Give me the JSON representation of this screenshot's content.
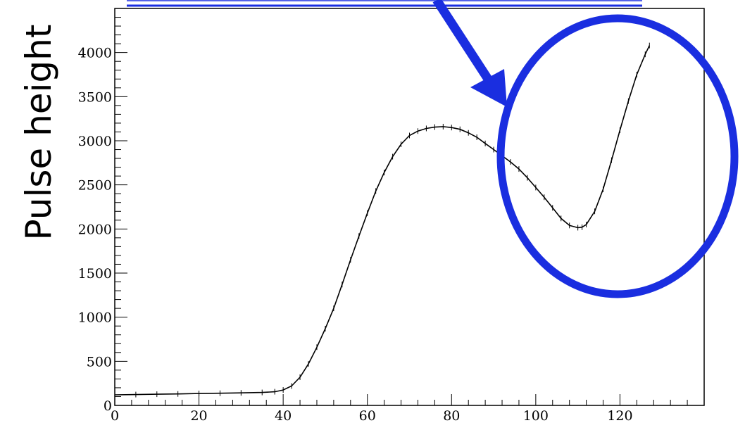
{
  "chart_data": {
    "type": "line",
    "title": "",
    "xlabel": "",
    "ylabel": "Pulse height",
    "xlim": [
      0,
      140
    ],
    "ylim": [
      0,
      4500
    ],
    "x_ticks": [
      0,
      20,
      40,
      60,
      80,
      100,
      120
    ],
    "y_ticks": [
      0,
      500,
      1000,
      1500,
      2000,
      2500,
      3000,
      3500,
      4000
    ],
    "grid": false,
    "legend": "none",
    "series": [
      {
        "line_color": "#000000",
        "x": [
          0,
          5,
          10,
          15,
          20,
          25,
          30,
          35,
          38,
          40,
          42,
          44,
          46,
          48,
          50,
          52,
          54,
          56,
          58,
          60,
          62,
          64,
          66,
          68,
          70,
          72,
          74,
          76,
          78,
          80,
          82,
          84,
          86,
          88,
          90,
          92,
          94,
          96,
          98,
          100,
          102,
          104,
          106,
          108,
          110,
          111,
          112,
          114,
          116,
          118,
          120,
          122,
          124,
          126,
          127
        ],
        "y": [
          120,
          123,
          127,
          130,
          135,
          138,
          142,
          147,
          155,
          175,
          220,
          320,
          470,
          660,
          870,
          1100,
          1370,
          1650,
          1920,
          2180,
          2430,
          2640,
          2820,
          2960,
          3060,
          3110,
          3140,
          3155,
          3160,
          3150,
          3130,
          3090,
          3040,
          2970,
          2900,
          2830,
          2760,
          2680,
          2580,
          2470,
          2360,
          2240,
          2120,
          2040,
          2015,
          2020,
          2050,
          2200,
          2450,
          2780,
          3120,
          3450,
          3750,
          3980,
          4080
        ]
      }
    ]
  },
  "annotation": {
    "highlight_color": "#1a2ee0"
  }
}
